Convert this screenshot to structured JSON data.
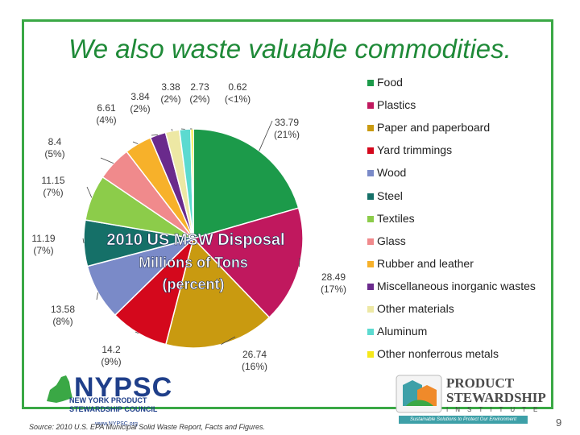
{
  "slide": {
    "title": "We also waste valuable commodities.",
    "source": "Source: 2010 U.S. EPA Municipal Solid Waste Report, Facts and Figures.",
    "page_number": "9"
  },
  "logos": {
    "nypsc": {
      "name": "NYPSC",
      "line1": "NEW YORK PRODUCT",
      "line2": "STEWARDSHIP COUNCIL",
      "url": "www.NYPSC.org"
    },
    "psi": {
      "line1": "PRODUCT",
      "line2": "STEWARDSHIP",
      "line3": "INSTITUTE",
      "tagline": "Sustainable Solutions to Protect Our Environment"
    }
  },
  "chart_data": {
    "type": "pie",
    "title": "2010 US MSW Disposal",
    "subtitle": "Millions of Tons (percent)",
    "legend_position": "right",
    "slices": [
      {
        "name": "Food",
        "value": 33.79,
        "label": "33.79",
        "pct": "(21%)",
        "color": "#1c9a4a"
      },
      {
        "name": "Plastics",
        "value": 28.49,
        "label": "28.49",
        "pct": "(17%)",
        "color": "#c0185e"
      },
      {
        "name": "Paper and paperboard",
        "value": 26.74,
        "label": "26.74",
        "pct": "(16%)",
        "color": "#c99a10"
      },
      {
        "name": "Yard trimmings",
        "value": 14.2,
        "label": "14.2",
        "pct": "(9%)",
        "color": "#d4081c"
      },
      {
        "name": "Wood",
        "value": 13.58,
        "label": "13.58",
        "pct": "(8%)",
        "color": "#7a8ac8"
      },
      {
        "name": "Steel",
        "value": 11.19,
        "label": "11.19",
        "pct": "(7%)",
        "color": "#157068"
      },
      {
        "name": "Textiles",
        "value": 11.15,
        "label": "11.15",
        "pct": "(7%)",
        "color": "#8ccc4a"
      },
      {
        "name": "Glass",
        "value": 8.4,
        "label": "8.4",
        "pct": "(5%)",
        "color": "#f08a8c"
      },
      {
        "name": "Rubber and leather",
        "value": 6.61,
        "label": "6.61",
        "pct": "(4%)",
        "color": "#f7b12a"
      },
      {
        "name": "Miscellaneous inorganic wastes",
        "value": 3.84,
        "label": "3.84",
        "pct": "(2%)",
        "color": "#6a2a8c"
      },
      {
        "name": "Other materials",
        "value": 3.38,
        "label": "3.38",
        "pct": "(2%)",
        "color": "#ede8a4"
      },
      {
        "name": "Aluminum",
        "value": 2.73,
        "label": "2.73",
        "pct": "(2%)",
        "color": "#5cdad0"
      },
      {
        "name": "Other nonferrous metals",
        "value": 0.62,
        "label": "0.62",
        "pct": "(<1%)",
        "color": "#f6e81a"
      }
    ]
  }
}
